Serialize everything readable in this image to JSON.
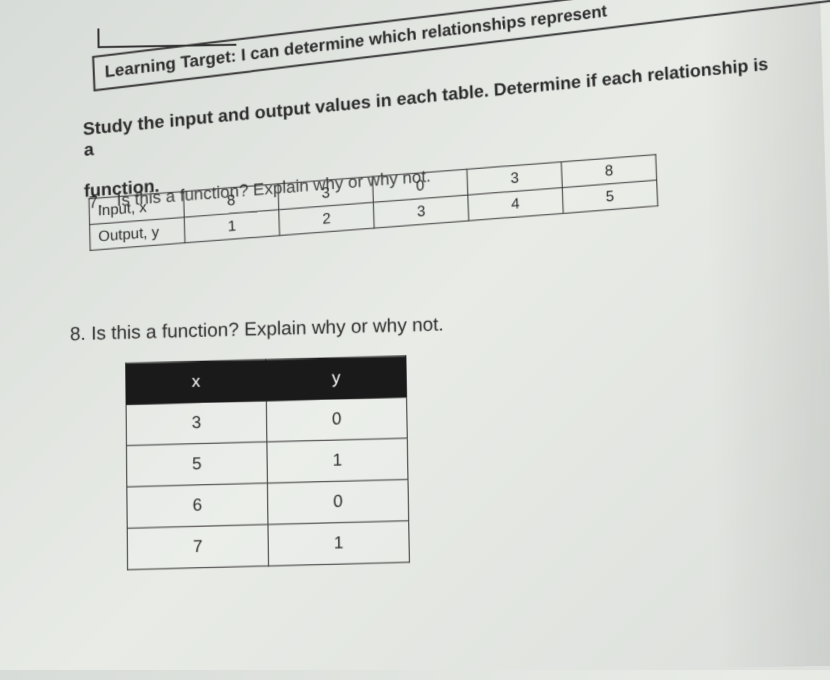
{
  "learning_target": "Learning Target:  I can determine which relationships represent",
  "study_text": "Study the input and output values in each table. Determine if each relationship is a",
  "function_label": "function.",
  "q7": {
    "number": "7.",
    "prompt": "Is this a function? Explain why or why not.",
    "row_labels": [
      "Input, x",
      "Output, y"
    ],
    "input_values": [
      "8",
      "3",
      "0",
      "3",
      "8"
    ],
    "output_values": [
      "1",
      "2",
      "3",
      "4",
      "5"
    ]
  },
  "q8": {
    "number": "8.",
    "prompt": "Is this a function? Explain why or why not.",
    "headers": [
      "x",
      "y"
    ],
    "rows": [
      [
        "3",
        "0"
      ],
      [
        "5",
        "1"
      ],
      [
        "6",
        "0"
      ],
      [
        "7",
        "1"
      ]
    ]
  },
  "colors": {
    "text": "#2a2a2a",
    "border": "#333333",
    "header_bg": "#1a1a1a",
    "header_fg": "#ffffff",
    "page_bg": "#e2e5e0"
  }
}
